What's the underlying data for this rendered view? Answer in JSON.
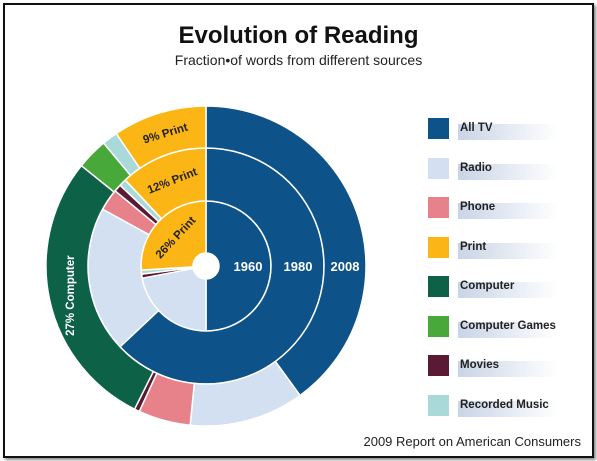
{
  "title": "Evolution of Reading",
  "subtitle": "Fraction•of words from different sources",
  "source": "2009 Report on American Consumers",
  "legend": [
    {
      "label": "All TV",
      "color": "#0d5288"
    },
    {
      "label": "Radio",
      "color": "#d3e0f1"
    },
    {
      "label": "Phone",
      "color": "#e8828a"
    },
    {
      "label": "Print",
      "color": "#fbb515"
    },
    {
      "label": "Computer",
      "color": "#0d6146"
    },
    {
      "label": "Computer Games",
      "color": "#48a93a"
    },
    {
      "label": "Movies",
      "color": "#5a1a33"
    },
    {
      "label": "Recorded Music",
      "color": "#a9d9d9"
    }
  ],
  "chart_data": {
    "type": "pie",
    "title": "Evolution of Reading",
    "subtitle": "Fraction•of words from different sources",
    "series": [
      {
        "name": "1960",
        "values": {
          "All TV": 50,
          "Radio": 22,
          "Phone": 0,
          "Print": 26,
          "Computer": 0,
          "Computer Games": 0,
          "Movies": 1,
          "Recorded Music": 1
        }
      },
      {
        "name": "1980",
        "values": {
          "All TV": 63,
          "Radio": 20,
          "Phone": 3,
          "Print": 12,
          "Computer": 0,
          "Computer Games": 0,
          "Movies": 1,
          "Recorded Music": 1
        }
      },
      {
        "name": "2008",
        "values": {
          "All TV": 38,
          "Radio": 11,
          "Phone": 5,
          "Print": 9,
          "Computer": 27,
          "Computer Games": 3,
          "Movies": 0.5,
          "Recorded Music": 1.5
        }
      }
    ],
    "slice_labels": [
      {
        "ring": "2008",
        "category": "Print",
        "text": "9% Print"
      },
      {
        "ring": "1980",
        "category": "Print",
        "text": "12% Print"
      },
      {
        "ring": "1960",
        "category": "Print",
        "text": "26% Print"
      },
      {
        "ring": "2008",
        "category": "Computer",
        "text": "27% Computer"
      }
    ],
    "ring_labels": [
      "1960",
      "1980",
      "2008"
    ]
  }
}
